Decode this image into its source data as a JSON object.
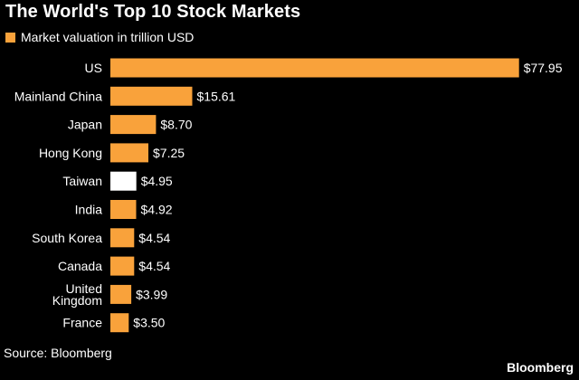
{
  "colors": {
    "background": "#000000",
    "bar": "#F9A23B",
    "highlight_bar": "#FFFFFF",
    "text": "#FFFFFF"
  },
  "legend": {
    "label": "Market valuation in trillion USD"
  },
  "source": "Source: Bloomberg",
  "brand": "Bloomberg",
  "chart_data": {
    "type": "bar",
    "orientation": "horizontal",
    "title": "The World's Top 10 Stock Markets",
    "xlabel": "",
    "ylabel": "",
    "grid": false,
    "legend_position": "top-left",
    "xlim": [
      0,
      78
    ],
    "categories": [
      "US",
      "Mainland China",
      "Japan",
      "Hong Kong",
      "Taiwan",
      "India",
      "South Korea",
      "Canada",
      "United Kingdom",
      "France"
    ],
    "category_lines": [
      [
        "US"
      ],
      [
        "Mainland China"
      ],
      [
        "Japan"
      ],
      [
        "Hong Kong"
      ],
      [
        "Taiwan"
      ],
      [
        "India"
      ],
      [
        "South Korea"
      ],
      [
        "Canada"
      ],
      [
        "United",
        "Kingdom"
      ],
      [
        "France"
      ]
    ],
    "series": [
      {
        "name": "Market valuation in trillion USD",
        "values": [
          77.95,
          15.61,
          8.7,
          7.25,
          4.95,
          4.92,
          4.54,
          4.54,
          3.99,
          3.5
        ]
      }
    ],
    "value_labels": [
      "$77.95",
      "$15.61",
      "$8.70",
      "$7.25",
      "$4.95",
      "$4.92",
      "$4.54",
      "$4.54",
      "$3.99",
      "$3.50"
    ],
    "highlighted_category": "Taiwan"
  }
}
